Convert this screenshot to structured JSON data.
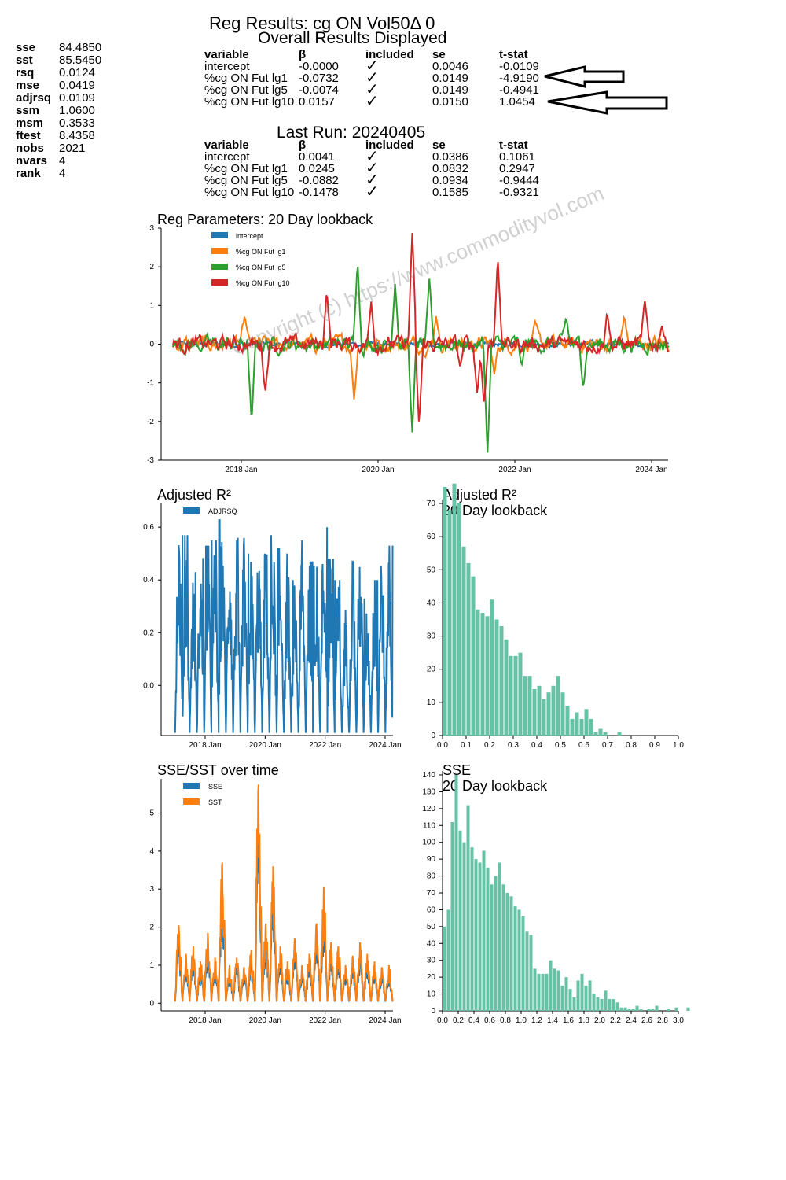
{
  "header": {
    "title": "Reg Results: cg ON Vol50Δ 0",
    "subtitle": "Overall Results Displayed",
    "last_run": "Last Run: 20240405"
  },
  "stats": [
    {
      "key": "sse",
      "value": "84.4850"
    },
    {
      "key": "sst",
      "value": "85.5450"
    },
    {
      "key": "rsq",
      "value": "0.0124"
    },
    {
      "key": "mse",
      "value": "0.0419"
    },
    {
      "key": "adjrsq",
      "value": "0.0109"
    },
    {
      "key": "ssm",
      "value": "1.0600"
    },
    {
      "key": "msm",
      "value": "0.3533"
    },
    {
      "key": "ftest",
      "value": "8.4358"
    },
    {
      "key": "nobs",
      "value": "2021"
    },
    {
      "key": "nvars",
      "value": "4"
    },
    {
      "key": "rank",
      "value": "4"
    }
  ],
  "table_headers": [
    "variable",
    "β",
    "included",
    "se",
    "t-stat"
  ],
  "overall_rows": [
    [
      "intercept",
      "-0.0000",
      "✓",
      "0.0046",
      "-0.0109"
    ],
    [
      "%cg ON Fut lg1",
      "-0.0732",
      "✓",
      "0.0149",
      "-4.9190"
    ],
    [
      "%cg ON Fut lg5",
      "-0.0074",
      "✓",
      "0.0149",
      "-0.4941"
    ],
    [
      "%cg ON Fut lg10",
      "0.0157",
      "✓",
      "0.0150",
      "1.0454"
    ]
  ],
  "last_rows": [
    [
      "intercept",
      "0.0041",
      "✓",
      "0.0386",
      "0.1061"
    ],
    [
      "%cg ON Fut lg1",
      "0.0245",
      "✓",
      "0.0832",
      "0.2947"
    ],
    [
      "%cg ON Fut lg5",
      "-0.0882",
      "✓",
      "0.0934",
      "-0.9444"
    ],
    [
      "%cg ON Fut lg10",
      "-0.1478",
      "✓",
      "0.1585",
      "-0.9321"
    ]
  ],
  "watermark": "Copyright (c) https://www.commodityvol.com",
  "colors": {
    "blue": "#1f77b4",
    "orange": "#ff7f0e",
    "green": "#2ca02c",
    "red": "#d62728",
    "teal": "#66c2a5"
  },
  "chart_data": [
    {
      "type": "line",
      "title": "Reg Parameters: 20 Day lookback",
      "x_ticks": [
        "2018 Jan",
        "2020 Jan",
        "2022 Jan",
        "2024 Jan"
      ],
      "ylim": [
        -3,
        3
      ],
      "y_ticks": [
        "3",
        "2",
        "1",
        "0",
        "-1",
        "-2",
        "-3"
      ],
      "legend": "top-left",
      "series": [
        {
          "name": "intercept",
          "color": "#1f77b4"
        },
        {
          "name": "%cg ON Fut lg1",
          "color": "#ff7f0e"
        },
        {
          "name": "%cg ON Fut lg5",
          "color": "#2ca02c"
        },
        {
          "name": "%cg ON Fut lg10",
          "color": "#d62728"
        }
      ],
      "events": [
        {
          "series": "%cg ON Fut lg5",
          "x": 2018.15,
          "y": -2.05
        },
        {
          "series": "%cg ON Fut lg10",
          "x": 2018.35,
          "y": -1.25
        },
        {
          "series": "%cg ON Fut lg1",
          "x": 2018.05,
          "y": 0.75
        },
        {
          "series": "%cg ON Fut lg10",
          "x": 2019.25,
          "y": 1.4
        },
        {
          "series": "%cg ON Fut lg5",
          "x": 2019.7,
          "y": 2.2
        },
        {
          "series": "%cg ON Fut lg1",
          "x": 2019.65,
          "y": -1.45
        },
        {
          "series": "%cg ON Fut lg10",
          "x": 2019.9,
          "y": 1.1
        },
        {
          "series": "%cg ON Fut lg5",
          "x": 2020.25,
          "y": 1.6
        },
        {
          "series": "%cg ON Fut lg10",
          "x": 2020.5,
          "y": 2.9
        },
        {
          "series": "%cg ON Fut lg5",
          "x": 2020.5,
          "y": -2.3
        },
        {
          "series": "%cg ON Fut lg10",
          "x": 2020.6,
          "y": -2.1
        },
        {
          "series": "%cg ON Fut lg5",
          "x": 2020.75,
          "y": 1.7
        },
        {
          "series": "%cg ON Fut lg1",
          "x": 2020.85,
          "y": 0.75
        },
        {
          "series": "%cg ON Fut lg10",
          "x": 2021.2,
          "y": -0.6
        },
        {
          "series": "%cg ON Fut lg10",
          "x": 2021.45,
          "y": -1.3
        },
        {
          "series": "%cg ON Fut lg5",
          "x": 2021.6,
          "y": -2.85
        },
        {
          "series": "%cg ON Fut lg10",
          "x": 2021.55,
          "y": -1.6
        },
        {
          "series": "%cg ON Fut lg10",
          "x": 2021.75,
          "y": 2.3
        },
        {
          "series": "%cg ON Fut lg1",
          "x": 2021.7,
          "y": -0.8
        },
        {
          "series": "%cg ON Fut lg5",
          "x": 2022.1,
          "y": -0.55
        },
        {
          "series": "%cg ON Fut lg1",
          "x": 2022.3,
          "y": 0.6
        },
        {
          "series": "%cg ON Fut lg5",
          "x": 2022.75,
          "y": 0.7
        },
        {
          "series": "%cg ON Fut lg5",
          "x": 2023.0,
          "y": -1.15
        },
        {
          "series": "%cg ON Fut lg10",
          "x": 2023.35,
          "y": 0.85
        },
        {
          "series": "%cg ON Fut lg1",
          "x": 2023.6,
          "y": 0.75
        },
        {
          "series": "%cg ON Fut lg10",
          "x": 2023.9,
          "y": 1.15
        },
        {
          "series": "%cg ON Fut lg10",
          "x": 2024.15,
          "y": 0.5
        }
      ]
    },
    {
      "type": "line",
      "title": "Adjusted R²",
      "series": [
        {
          "name": "ADJRSQ",
          "color": "#1f77b4"
        }
      ],
      "x_ticks": [
        "2018 Jan",
        "2020 Jan",
        "2022 Jan",
        "2024 Jan"
      ],
      "y_ticks": [
        "0.6",
        "0.4",
        "0.2",
        "0.0"
      ],
      "ylim": [
        -0.19,
        0.69
      ],
      "legend": "top-left",
      "peaks": [
        0.65,
        0.57,
        0.43,
        0.48,
        0.53,
        0.55,
        0.63,
        0.6,
        0.56,
        0.57,
        0.5,
        0.55,
        0.6,
        0.57,
        0.52,
        0.5,
        0.4,
        0.55,
        0.47,
        0.45,
        0.6,
        0.48,
        0.4,
        0.3,
        0.47,
        0.55,
        0.33,
        0.4,
        0.58,
        0.53
      ]
    },
    {
      "type": "bar",
      "title": "Adjusted R²",
      "subtitle": "20 Day lookback",
      "x_ticks": [
        "0.0",
        "0.1",
        "0.2",
        "0.3",
        "0.4",
        "0.5",
        "0.6",
        "0.7",
        "0.8",
        "0.9",
        "1.0"
      ],
      "y_ticks": [
        "0",
        "10",
        "20",
        "30",
        "40",
        "50",
        "60",
        "70"
      ],
      "xlim": [
        0,
        1
      ],
      "ylim": [
        0,
        70
      ],
      "bin_width": 0.02,
      "values": [
        75,
        68,
        76,
        70,
        57,
        52,
        48,
        38,
        37,
        36,
        41,
        35,
        33,
        29,
        24,
        24,
        25,
        18,
        18,
        14,
        15,
        11,
        13,
        15,
        18,
        13,
        9,
        5,
        7,
        5,
        8,
        5,
        1,
        2,
        1,
        0,
        0,
        1,
        0,
        0,
        0,
        0,
        0,
        0,
        0,
        0,
        0,
        0,
        0,
        0
      ]
    },
    {
      "type": "line",
      "title": "SSE/SST over time",
      "series": [
        {
          "name": "SSE",
          "color": "#1f77b4"
        },
        {
          "name": "SST",
          "color": "#ff7f0e"
        }
      ],
      "x_ticks": [
        "2018 Jan",
        "2020 Jan",
        "2022 Jan",
        "2024 Jan"
      ],
      "y_ticks": [
        "5",
        "4",
        "3",
        "2",
        "1",
        "0"
      ],
      "ylim": [
        -0.2,
        5.9
      ],
      "legend": "top-left",
      "peaks": [
        2.05,
        1.3,
        1.5,
        1.1,
        1.85,
        1.2,
        3.7,
        1.0,
        1.2,
        0.95,
        1.4,
        5.75,
        2.1,
        3.6,
        1.5,
        1.1,
        1.7,
        1.0,
        1.3,
        2.1,
        3.05,
        1.6,
        1.5,
        1.0,
        1.25,
        1.6,
        1.3,
        1.1,
        0.95,
        1.0
      ]
    },
    {
      "type": "bar",
      "title": "SSE",
      "subtitle": "20 Day lookback",
      "x_ticks": [
        "0.0",
        "0.2",
        "0.4",
        "0.6",
        "0.8",
        "1.0",
        "1.2",
        "1.4",
        "1.6",
        "1.8",
        "2.0",
        "2.2",
        "2.4",
        "2.6",
        "2.8",
        "3.0"
      ],
      "y_ticks": [
        "0",
        "10",
        "20",
        "30",
        "40",
        "50",
        "60",
        "70",
        "80",
        "90",
        "100",
        "110",
        "120",
        "130",
        "140"
      ],
      "xlim": [
        0,
        3
      ],
      "ylim": [
        0,
        140
      ],
      "bin_width": 0.05,
      "values": [
        50,
        60,
        112,
        140,
        107,
        100,
        122,
        97,
        90,
        88,
        95,
        85,
        75,
        80,
        88,
        75,
        70,
        68,
        62,
        60,
        56,
        47,
        45,
        25,
        22,
        22,
        22,
        30,
        25,
        24,
        15,
        20,
        13,
        8,
        18,
        22,
        15,
        18,
        10,
        8,
        7,
        12,
        7,
        7,
        5,
        2,
        2,
        1,
        1,
        3,
        1,
        0,
        1,
        1,
        3,
        0,
        0,
        1,
        0,
        2,
        0,
        0,
        2,
        0,
        0,
        0
      ]
    }
  ]
}
